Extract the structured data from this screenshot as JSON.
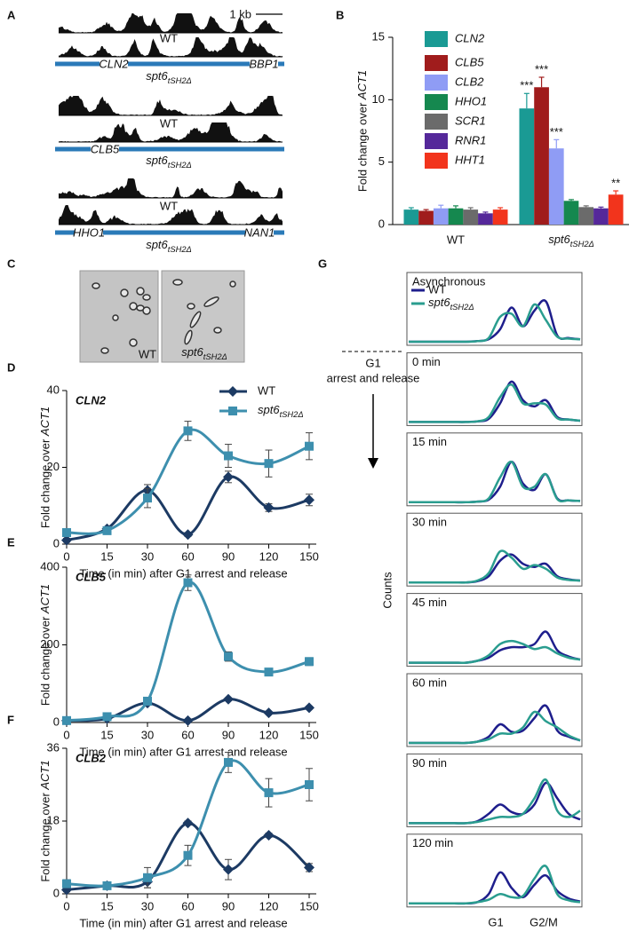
{
  "panel_labels": [
    "A",
    "B",
    "C",
    "D",
    "E",
    "F",
    "G"
  ],
  "panel_a": {
    "scale_bar": "1 kb",
    "loci": [
      {
        "wt_label": "WT",
        "mutant_label": "spt6tSH2Δ",
        "genes": [
          "CLN2",
          "BBP1"
        ]
      },
      {
        "wt_label": "WT",
        "mutant_label": "spt6tSH2Δ",
        "genes": [
          "CLB5"
        ]
      },
      {
        "wt_label": "WT",
        "mutant_label": "spt6tSH2Δ",
        "genes": [
          "HHO1",
          "NAN1"
        ]
      }
    ]
  },
  "panel_c": {
    "image_labels": [
      "WT",
      "spt6tSH2Δ"
    ]
  },
  "chart_data": [
    {
      "type": "bar",
      "ylabel": "Fold change over ACT1",
      "categories": [
        "WT",
        "spt6tSH2Δ"
      ],
      "ylim": [
        0,
        15
      ],
      "yticks": [
        0,
        5,
        10,
        15
      ],
      "series": [
        {
          "name": "CLN2",
          "color": "#1a9a94",
          "values": [
            1.2,
            9.3
          ],
          "errors": [
            0.15,
            1.2
          ],
          "significance": [
            null,
            "***"
          ]
        },
        {
          "name": "CLB5",
          "color": "#a01c1c",
          "values": [
            1.1,
            11.0
          ],
          "errors": [
            0.1,
            0.8
          ],
          "significance": [
            null,
            "***"
          ]
        },
        {
          "name": "CLB2",
          "color": "#8f9cf5",
          "values": [
            1.3,
            6.1
          ],
          "errors": [
            0.25,
            0.7
          ],
          "significance": [
            null,
            "***"
          ]
        },
        {
          "name": "HHO1",
          "color": "#15884f",
          "values": [
            1.3,
            1.9
          ],
          "errors": [
            0.2,
            0.1
          ],
          "significance": [
            null,
            null
          ]
        },
        {
          "name": "SCR1",
          "color": "#6b6b6b",
          "values": [
            1.2,
            1.4
          ],
          "errors": [
            0.15,
            0.1
          ],
          "significance": [
            null,
            null
          ]
        },
        {
          "name": "RNR1",
          "color": "#55289a",
          "values": [
            0.9,
            1.3
          ],
          "errors": [
            0.1,
            0.1
          ],
          "significance": [
            null,
            null
          ]
        },
        {
          "name": "HHT1",
          "color": "#f2341c",
          "values": [
            1.2,
            2.4
          ],
          "errors": [
            0.15,
            0.3
          ],
          "significance": [
            null,
            "**"
          ]
        }
      ]
    },
    {
      "type": "line",
      "title": "CLN2",
      "ylabel": "Fold change over ACT1",
      "xlabel": "Time (in min) after G1 arrest and release",
      "categories": [
        "0",
        "15",
        "30",
        "60",
        "90",
        "120",
        "150"
      ],
      "ylim": [
        0,
        40
      ],
      "yticks": [
        0,
        20,
        40
      ],
      "legend": true,
      "series": [
        {
          "name": "WT",
          "color": "#1c3a63",
          "marker": "diamond",
          "values": [
            1,
            4,
            14,
            2.5,
            17.5,
            9.5,
            11.5
          ],
          "errors": [
            0.5,
            0.5,
            1.5,
            0.5,
            1.5,
            1,
            1.5
          ]
        },
        {
          "name": "spt6tSH2Δ",
          "color": "#3d8fae",
          "marker": "square",
          "values": [
            3,
            3.5,
            12,
            29.5,
            23,
            21,
            25.5
          ],
          "errors": [
            0.5,
            0.5,
            2.5,
            2.5,
            3,
            3.5,
            3.5
          ]
        }
      ]
    },
    {
      "type": "line",
      "title": "CLB5",
      "ylabel": "Fold change over ACT1",
      "xlabel": "Time (in min) after G1 arrest and release",
      "categories": [
        "0",
        "15",
        "30",
        "60",
        "90",
        "120",
        "150"
      ],
      "ylim": [
        0,
        400
      ],
      "yticks": [
        0,
        200,
        400
      ],
      "legend": false,
      "series": [
        {
          "color": "#1c3a63",
          "marker": "diamond",
          "values": [
            5,
            10,
            50,
            5,
            60,
            25,
            38
          ],
          "errors": [
            2,
            2,
            4,
            2,
            4,
            3,
            4
          ]
        },
        {
          "color": "#3d8fae",
          "marker": "square",
          "values": [
            5,
            15,
            55,
            360,
            170,
            130,
            157
          ],
          "errors": [
            3,
            3,
            5,
            20,
            12,
            5,
            10
          ]
        }
      ]
    },
    {
      "type": "line",
      "title": "CLB2",
      "ylabel": "Fold change over ACT1",
      "xlabel": "Time (in min) after G1 arrest and release",
      "categories": [
        "0",
        "15",
        "30",
        "60",
        "90",
        "120",
        "150"
      ],
      "ylim": [
        0,
        36
      ],
      "yticks": [
        0,
        18,
        36
      ],
      "legend": false,
      "series": [
        {
          "color": "#1c3a63",
          "marker": "diamond",
          "values": [
            1,
            2,
            3,
            17.5,
            6,
            14.5,
            6.5
          ],
          "errors": [
            0.5,
            0.5,
            1.5,
            0.5,
            2.5,
            0.5,
            1
          ]
        },
        {
          "color": "#3d8fae",
          "marker": "square",
          "values": [
            2.5,
            2,
            4,
            9.5,
            32.5,
            25,
            27
          ],
          "errors": [
            1,
            0.5,
            2.5,
            2.5,
            2.5,
            3.5,
            4
          ]
        }
      ]
    },
    {
      "type": "density",
      "ylabel": "Counts",
      "x_labels": [
        "G1",
        "G2/M"
      ],
      "annotation_lines": [
        "G1",
        "arrest and release"
      ],
      "series": [
        {
          "name": "WT",
          "color": "#1e1e8c"
        },
        {
          "name": "spt6tSH2Δ",
          "color": "#2a9d8f"
        }
      ],
      "panels": [
        {
          "title": "Asynchronous",
          "values": [
            [
              0,
              0,
              0,
              0,
              0,
              0,
              1,
              4,
              20,
              55,
              25,
              50,
              65,
              10,
              6,
              4
            ],
            [
              0,
              0,
              0,
              0,
              0,
              0,
              1,
              6,
              40,
              45,
              25,
              60,
              35,
              8,
              5,
              4
            ]
          ]
        },
        {
          "title": "0 min",
          "values": [
            [
              0,
              0,
              0,
              0,
              0,
              0,
              1,
              5,
              30,
              65,
              35,
              25,
              35,
              8,
              4,
              2
            ],
            [
              0,
              0,
              0,
              0,
              0,
              0,
              1,
              8,
              40,
              60,
              30,
              30,
              28,
              6,
              4,
              2
            ]
          ]
        },
        {
          "title": "15 min",
          "values": [
            [
              0,
              0,
              0,
              0,
              0,
              0,
              1,
              4,
              25,
              65,
              30,
              20,
              45,
              6,
              3,
              2
            ],
            [
              0,
              0,
              0,
              0,
              0,
              0,
              1,
              6,
              40,
              65,
              25,
              25,
              45,
              5,
              3,
              2
            ]
          ]
        },
        {
          "title": "30 min",
          "values": [
            [
              0,
              0,
              0,
              0,
              0,
              0,
              2,
              10,
              35,
              45,
              30,
              25,
              30,
              10,
              5,
              3
            ],
            [
              0,
              0,
              0,
              0,
              0,
              0,
              3,
              15,
              50,
              40,
              22,
              28,
              22,
              8,
              4,
              3
            ]
          ]
        },
        {
          "title": "45 min",
          "values": [
            [
              0,
              0,
              0,
              0,
              0,
              0,
              3,
              8,
              20,
              25,
              25,
              30,
              50,
              20,
              10,
              5
            ],
            [
              0,
              0,
              0,
              0,
              0,
              0,
              3,
              12,
              30,
              35,
              30,
              22,
              25,
              15,
              8,
              5
            ]
          ]
        },
        {
          "title": "60 min",
          "values": [
            [
              0,
              0,
              0,
              0,
              0,
              0,
              2,
              10,
              30,
              18,
              20,
              40,
              60,
              20,
              10,
              4
            ],
            [
              0,
              0,
              0,
              0,
              0,
              0,
              2,
              6,
              15,
              15,
              25,
              50,
              35,
              25,
              12,
              4
            ]
          ]
        },
        {
          "title": "90 min",
          "values": [
            [
              0,
              0,
              0,
              0,
              0,
              0,
              3,
              15,
              30,
              18,
              15,
              30,
              65,
              40,
              15,
              6
            ],
            [
              0,
              0,
              0,
              0,
              0,
              0,
              2,
              6,
              10,
              10,
              15,
              40,
              70,
              20,
              10,
              20
            ]
          ]
        },
        {
          "title": "120 min",
          "values": [
            [
              0,
              0,
              0,
              0,
              0,
              0,
              2,
              15,
              50,
              25,
              10,
              30,
              45,
              20,
              8,
              3
            ],
            [
              0,
              0,
              0,
              0,
              0,
              0,
              2,
              6,
              15,
              10,
              12,
              40,
              60,
              15,
              5,
              2
            ]
          ]
        }
      ]
    }
  ]
}
